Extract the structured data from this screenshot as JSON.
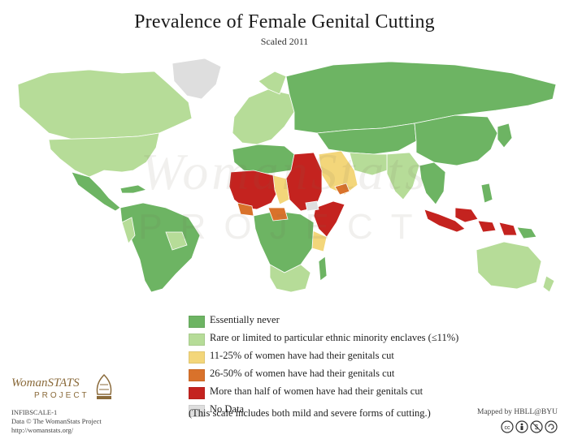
{
  "title": "Prevalence of Female Genital Cutting",
  "subtitle": "Scaled 2011",
  "watermark": {
    "line1": "WomanStats",
    "line2": "PROJECT"
  },
  "colors": {
    "never": "#6db463",
    "rare": "#b6dc98",
    "low": "#f3d67a",
    "mid": "#d9722b",
    "high": "#c4231f",
    "nodata": "#dedede",
    "ocean": "#ffffff"
  },
  "legend": [
    {
      "key": "never",
      "label": "Essentially never"
    },
    {
      "key": "rare",
      "label": "Rare or limited to particular ethnic minority enclaves (≤11%)"
    },
    {
      "key": "low",
      "label": "11-25% of women have had their genitals cut"
    },
    {
      "key": "mid",
      "label": "26-50% of women have had their genitals cut"
    },
    {
      "key": "high",
      "label": "More than half of women have had their genitals cut"
    },
    {
      "key": "nodata",
      "label": "No Data"
    }
  ],
  "legend_note": "(This scale includes both mild and severe forms of cutting.)",
  "logo": {
    "word": "WomanSTATS",
    "sub": "PROJECT"
  },
  "meta": {
    "code": "INFIBSCALE-1",
    "data_line": "Data © The WomanStats Project",
    "url": "http://womanstats.org/"
  },
  "credit": "Mapped by HBLL@BYU",
  "cc_icons": [
    "cc-icon",
    "by-icon",
    "nc-icon"
  ]
}
